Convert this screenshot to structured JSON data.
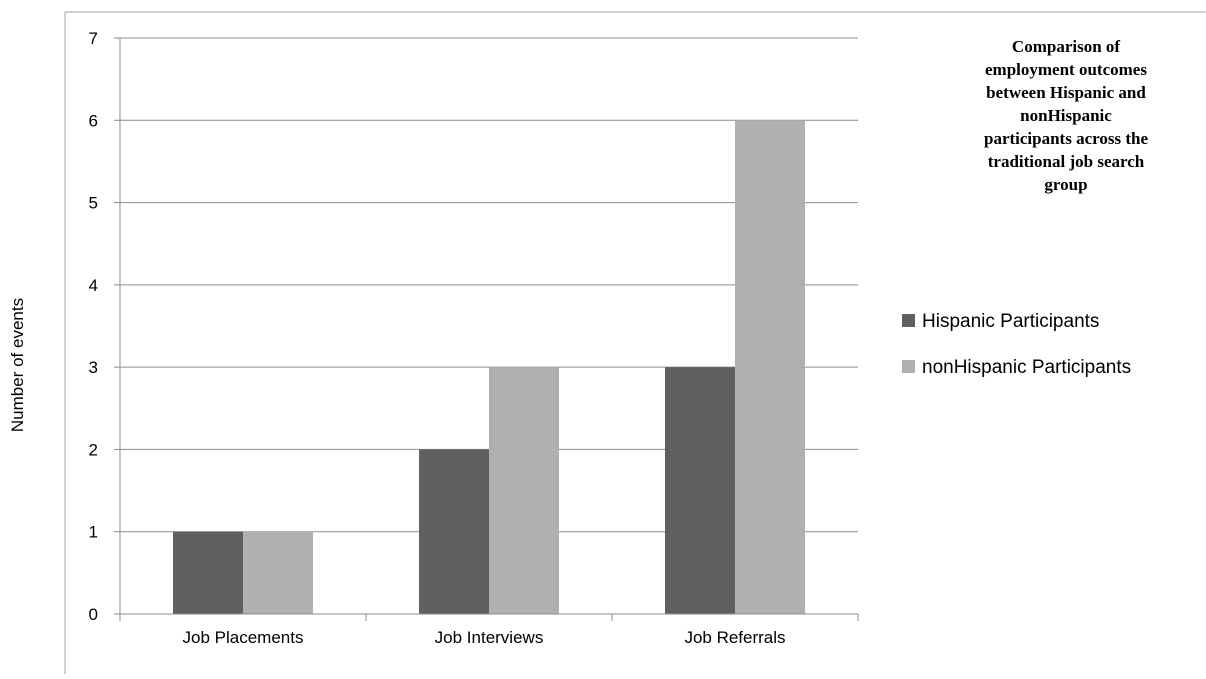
{
  "chart_data": {
    "type": "bar",
    "title": "Comparison of employment outcomes between Hispanic and nonHispanic participants across the traditional job search group",
    "title_lines": [
      "Comparison of",
      "employment outcomes",
      "between Hispanic and",
      "nonHispanic",
      "participants across the",
      "traditional job search",
      "group"
    ],
    "xlabel": "",
    "ylabel": "Number of events",
    "categories": [
      "Job Placements",
      "Job Interviews",
      "Job Referrals"
    ],
    "series": [
      {
        "name": "Hispanic Participants",
        "values": [
          1,
          2,
          3
        ],
        "color": "#606060"
      },
      {
        "name": "nonHispanic Participants",
        "values": [
          1,
          3,
          6
        ],
        "color": "#b0b0b0"
      }
    ],
    "ylim": [
      0,
      7
    ],
    "yticks": [
      "0",
      "1",
      "2",
      "3",
      "4",
      "5",
      "6",
      "7"
    ],
    "grid": true,
    "legend_position": "right"
  }
}
